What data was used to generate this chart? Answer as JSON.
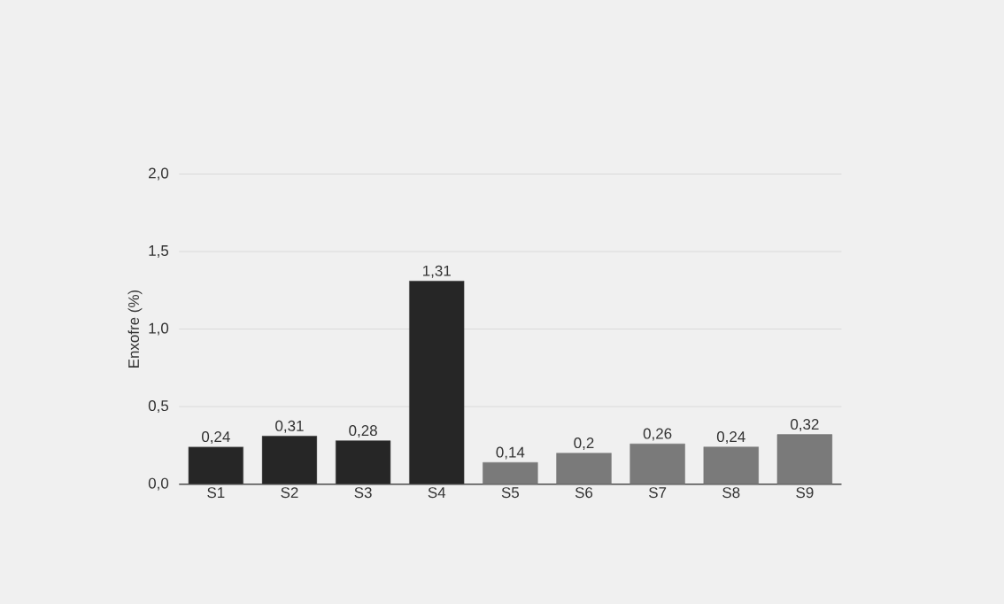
{
  "chart_data": {
    "type": "bar",
    "ylabel": "Enxofre (%)",
    "categories": [
      "S1",
      "S2",
      "S3",
      "S4",
      "S5",
      "S6",
      "S7",
      "S8",
      "S9"
    ],
    "values": [
      0.24,
      0.31,
      0.28,
      1.31,
      0.14,
      0.2,
      0.26,
      0.24,
      0.32
    ],
    "colors": [
      "#262626",
      "#262626",
      "#262626",
      "#262626",
      "#7a7a7a",
      "#7a7a7a",
      "#7a7a7a",
      "#7a7a7a",
      "#7a7a7a"
    ],
    "value_labels": [
      "0,24",
      "0,31",
      "0,28",
      "1,31",
      "0,14",
      "0,2",
      "0,26",
      "0,24",
      "0,32"
    ],
    "ylim": [
      0,
      2
    ],
    "yticks": [
      {
        "value": 0,
        "label": "0,0"
      },
      {
        "value": 0.5,
        "label": "0,5"
      },
      {
        "value": 1,
        "label": "1,0"
      },
      {
        "value": 1.5,
        "label": "1,5"
      },
      {
        "value": 2,
        "label": "2,0"
      }
    ],
    "grid": "y"
  }
}
